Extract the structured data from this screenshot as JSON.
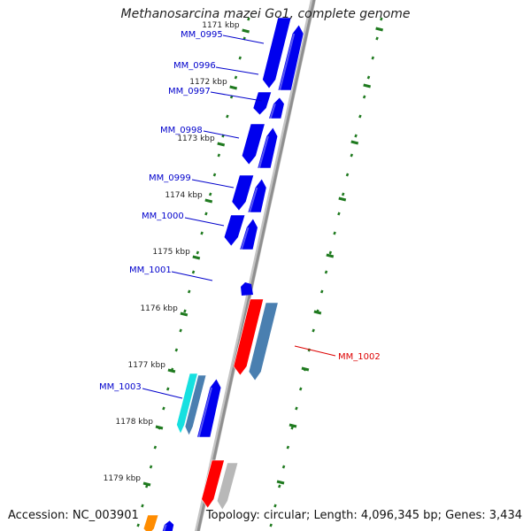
{
  "header": {
    "title": "Methanosarcina mazei Go1, complete genome"
  },
  "footer": {
    "accession": "Accession: NC_003901",
    "summary": "Topology: circular; Length: 4,096,345 bp; Genes: 3,434"
  },
  "colors": {
    "backbone": "#8f8f8f",
    "tick": "#1f7a1f",
    "gene_default": "#0000ee",
    "gene_highlight": "#ff0000",
    "gene_steel": "#4a7fb0",
    "gene_cyan": "#16e0e0",
    "gene_gray": "#b8b8b8",
    "gene_orange": "#ff8c00",
    "label_default": "#0000cc",
    "label_highlight": "#dd0000"
  },
  "scale_labels": [
    "1171 kbp",
    "1172 kbp",
    "1173 kbp",
    "1174 kbp",
    "1175 kbp",
    "1176 kbp",
    "1177 kbp",
    "1178 kbp",
    "1179 kbp"
  ],
  "gene_labels": [
    {
      "id": "MM_0995",
      "color": "label_default"
    },
    {
      "id": "MM_0996",
      "color": "label_default"
    },
    {
      "id": "MM_0997",
      "color": "label_default"
    },
    {
      "id": "MM_0998",
      "color": "label_default"
    },
    {
      "id": "MM_0999",
      "color": "label_default"
    },
    {
      "id": "MM_1000",
      "color": "label_default"
    },
    {
      "id": "MM_1001",
      "color": "label_default"
    },
    {
      "id": "MM_1002",
      "color": "label_highlight"
    },
    {
      "id": "MM_1003",
      "color": "label_default"
    }
  ]
}
